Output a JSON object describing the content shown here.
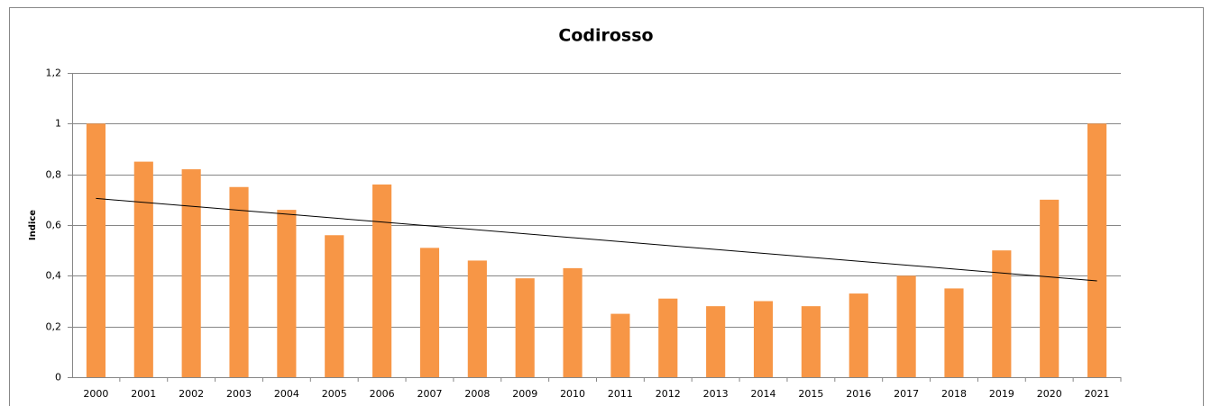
{
  "chart_data": {
    "type": "bar",
    "title": "Codirosso",
    "y_label": "Indice",
    "categories": [
      "2000",
      "2001",
      "2002",
      "2003",
      "2004",
      "2005",
      "2006",
      "2007",
      "2008",
      "2009",
      "2010",
      "2011",
      "2012",
      "2013",
      "2014",
      "2015",
      "2016",
      "2017",
      "2018",
      "2019",
      "2020",
      "2021"
    ],
    "values": [
      1.0,
      0.85,
      0.82,
      0.75,
      0.66,
      0.56,
      0.76,
      0.51,
      0.46,
      0.39,
      0.43,
      0.25,
      0.31,
      0.28,
      0.3,
      0.28,
      0.33,
      0.4,
      0.35,
      0.5,
      0.7,
      1.0
    ],
    "color": "#f79646",
    "trendline": [
      0.705,
      0.38
    ],
    "trendline_color": "#000000",
    "ylim": [
      0,
      1.2
    ],
    "yticks": [
      0,
      {
        "value": 0.2,
        "label": "0,2"
      },
      {
        "value": 0.4,
        "label": "0,4"
      },
      {
        "value": 0.6,
        "label": "0,6"
      },
      {
        "value": 0.8,
        "label": "0,8"
      },
      1,
      {
        "value": 1.2,
        "label": "1,2"
      }
    ],
    "grid": true
  }
}
